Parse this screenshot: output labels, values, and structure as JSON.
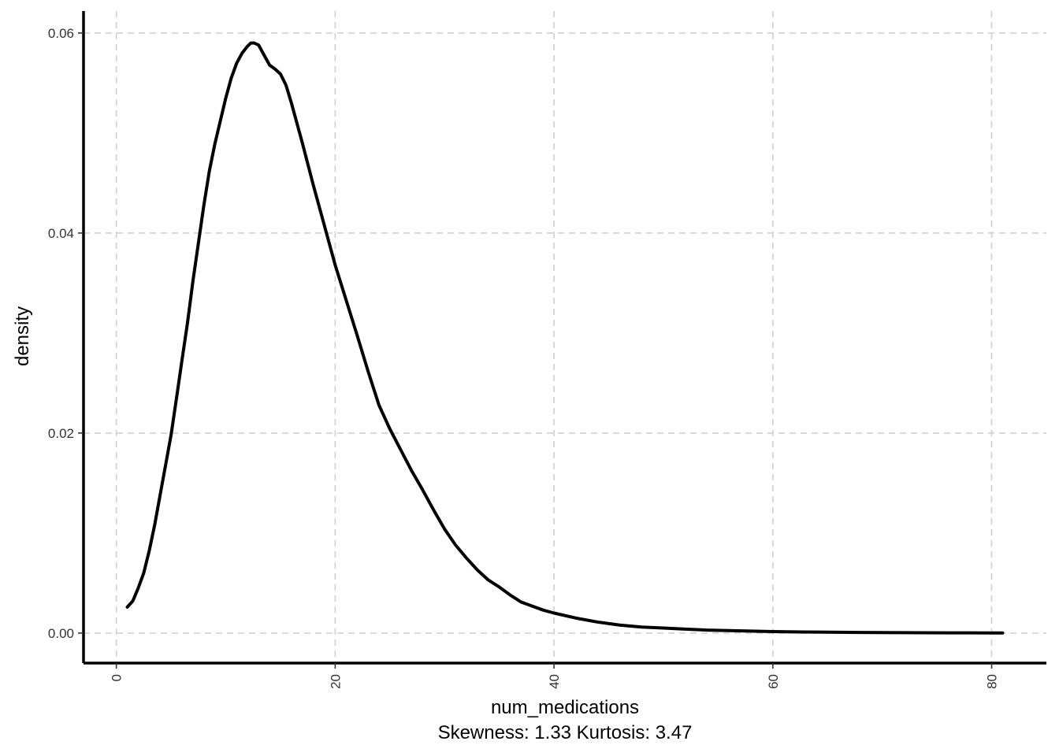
{
  "chart_data": {
    "type": "line",
    "xlabel": "num_medications",
    "caption": "Skewness: 1.33 Kurtosis: 3.47",
    "ylabel": "density",
    "xlim": [
      -3,
      85
    ],
    "ylim": [
      -0.003,
      0.0622
    ],
    "x_ticks": [
      0,
      20,
      40,
      60,
      80
    ],
    "x_tick_labels": [
      "0",
      "20",
      "40",
      "60",
      "80"
    ],
    "y_ticks": [
      0.0,
      0.02,
      0.04,
      0.06
    ],
    "y_tick_labels": [
      "0.00",
      "0.02",
      "0.04",
      "0.06"
    ],
    "grid": true,
    "grid_style": "dashed",
    "series": [
      {
        "color": "#000000",
        "x": [
          1,
          1.5,
          2,
          2.5,
          3,
          3.5,
          4,
          4.5,
          5,
          5.5,
          6,
          6.5,
          7,
          7.5,
          8,
          8.5,
          9,
          9.5,
          10,
          10.5,
          11,
          11.5,
          12,
          12.3,
          12.6,
          13,
          13.5,
          14,
          14.5,
          15,
          15.5,
          16,
          17,
          18,
          19,
          20,
          21,
          22,
          23,
          24,
          25,
          26,
          27,
          28,
          29,
          30,
          31,
          32,
          33,
          34,
          35,
          36,
          37,
          38,
          39,
          40,
          42,
          44,
          46,
          48,
          50,
          52,
          54,
          56,
          58,
          60,
          62,
          64,
          66,
          68,
          70,
          72,
          74,
          76,
          78,
          80,
          81
        ],
        "y": [
          0.0026,
          0.0032,
          0.0045,
          0.006,
          0.0082,
          0.0108,
          0.0138,
          0.0168,
          0.0198,
          0.0235,
          0.0273,
          0.031,
          0.0352,
          0.039,
          0.0428,
          0.0462,
          0.0489,
          0.0512,
          0.0535,
          0.0555,
          0.057,
          0.058,
          0.0587,
          0.059,
          0.059,
          0.0588,
          0.0578,
          0.0568,
          0.0564,
          0.0559,
          0.0548,
          0.053,
          0.049,
          0.0448,
          0.0408,
          0.0368,
          0.0333,
          0.0298,
          0.0262,
          0.0228,
          0.0204,
          0.0183,
          0.0162,
          0.0143,
          0.0123,
          0.0104,
          0.0088,
          0.0075,
          0.0063,
          0.0053,
          0.0046,
          0.0038,
          0.0031,
          0.0027,
          0.0023,
          0.002,
          0.0015,
          0.0011,
          0.0008,
          0.0006,
          0.0005,
          0.0004,
          0.0003,
          0.00025,
          0.0002,
          0.00015,
          0.00012,
          0.0001,
          8e-05,
          6e-05,
          5e-05,
          4e-05,
          3e-05,
          2e-05,
          2e-05,
          1e-05,
          1e-05
        ]
      }
    ]
  }
}
